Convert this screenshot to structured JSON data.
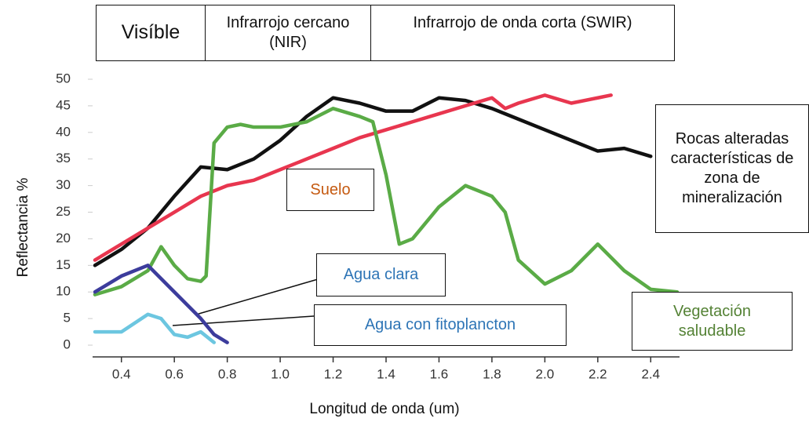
{
  "chart_data": {
    "type": "line",
    "regions": [
      "Visíble",
      "Infrarrojo cercano (NIR)",
      "Infrarrojo de onda corta (SWIR)"
    ],
    "x_label": "Longitud de onda (um)",
    "y_label": "Reflectancia %",
    "xlim": [
      0.3,
      2.5
    ],
    "ylim": [
      -2,
      50
    ],
    "xticks": [
      0.4,
      0.6,
      0.8,
      {
        "value": 1.0,
        "label": "1.0"
      },
      1.2,
      1.4,
      1.6,
      1.8,
      {
        "value": 2.0,
        "label": "2.0"
      },
      2.2,
      2.4
    ],
    "yticks": [
      0,
      5,
      10,
      15,
      20,
      25,
      30,
      35,
      40,
      45,
      50
    ],
    "series": [
      {
        "name": "Rocas alteradas características de zona de mineralización",
        "color": "#111111",
        "x": [
          0.3,
          0.4,
          0.5,
          0.6,
          0.7,
          0.8,
          0.9,
          1.0,
          1.1,
          1.2,
          1.3,
          1.4,
          1.5,
          1.6,
          1.7,
          1.8,
          1.9,
          2.0,
          2.1,
          2.2,
          2.3,
          2.4
        ],
        "values": [
          15,
          18,
          22,
          28,
          33.5,
          33,
          35,
          38.5,
          43,
          46.5,
          45.5,
          44,
          44,
          46.5,
          46,
          44.5,
          42.5,
          40.5,
          38.5,
          36.5,
          37,
          35.5
        ]
      },
      {
        "name": "Suelo",
        "color": "#e8364f",
        "x": [
          0.3,
          0.4,
          0.5,
          0.6,
          0.7,
          0.8,
          0.9,
          1.0,
          1.1,
          1.2,
          1.3,
          1.4,
          1.5,
          1.6,
          1.7,
          1.8,
          1.85,
          1.9,
          2.0,
          2.1,
          2.2,
          2.25
        ],
        "values": [
          16,
          19,
          22,
          25,
          28,
          30,
          31,
          33,
          35,
          37,
          39,
          40.5,
          42,
          43.5,
          45,
          46.5,
          44.5,
          45.5,
          47,
          45.5,
          46.5,
          47
        ]
      },
      {
        "name": "Vegetación saludable",
        "color": "#5aab46",
        "x": [
          0.3,
          0.4,
          0.5,
          0.55,
          0.6,
          0.65,
          0.7,
          0.72,
          0.75,
          0.8,
          0.85,
          0.9,
          1.0,
          1.1,
          1.2,
          1.3,
          1.35,
          1.4,
          1.45,
          1.5,
          1.6,
          1.7,
          1.8,
          1.85,
          1.9,
          2.0,
          2.1,
          2.2,
          2.3,
          2.4,
          2.5
        ],
        "values": [
          9.5,
          11,
          14,
          18.5,
          15,
          12.5,
          12,
          13,
          38,
          41,
          41.5,
          41,
          41,
          42,
          44.5,
          43,
          42,
          32,
          19,
          20,
          26,
          30,
          28,
          25,
          16,
          11.5,
          14,
          19,
          14,
          10.5,
          10
        ]
      },
      {
        "name": "Agua clara",
        "color": "#3c3c9c",
        "x": [
          0.3,
          0.4,
          0.5,
          0.6,
          0.7,
          0.75,
          0.8
        ],
        "values": [
          10,
          13,
          15,
          10,
          5,
          2,
          0.5
        ]
      },
      {
        "name": "Agua con fitoplancton",
        "color": "#6cc6e0",
        "x": [
          0.3,
          0.4,
          0.5,
          0.55,
          0.6,
          0.65,
          0.7,
          0.75
        ],
        "values": [
          2.5,
          2.5,
          5.8,
          5,
          2,
          1.5,
          2.5,
          0.5
        ]
      }
    ]
  }
}
